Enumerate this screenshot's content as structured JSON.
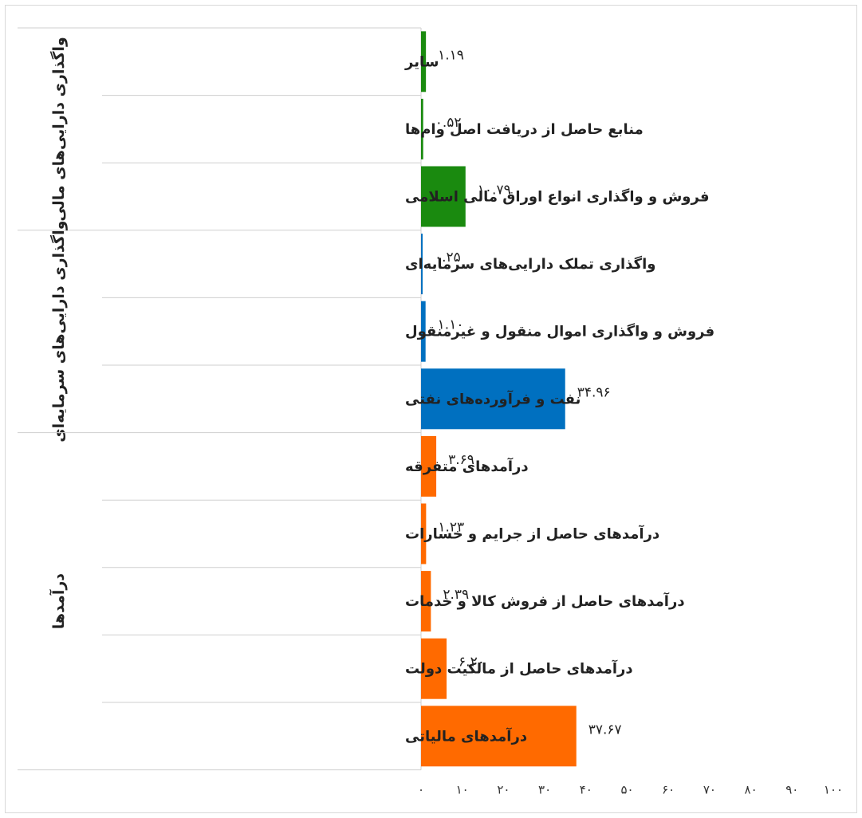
{
  "chart_data": {
    "type": "bar",
    "orientation": "horizontal",
    "direction": "rtl",
    "xlim": [
      0,
      100
    ],
    "x_ticks": [
      "۰",
      "۱۰",
      "۲۰",
      "۳۰",
      "۴۰",
      "۵۰",
      "۶۰",
      "۷۰",
      "۸۰",
      "۹۰",
      "۱۰۰"
    ],
    "groups": [
      {
        "name": "واگذاری دارایی‌های مالی",
        "color": "#1a8a0f",
        "items": [
          {
            "label": "سایر",
            "value": 1.19,
            "value_label": "۱.۱۹"
          },
          {
            "label": "منابع حاصل از دریافت اصل وام‌ها",
            "value": 0.52,
            "value_label": "۰.۵۲"
          },
          {
            "label": "فروش و واگذاری انواع اوراق مالی اسلامی",
            "value": 10.79,
            "value_label": "۱۰.۷۹"
          }
        ]
      },
      {
        "name": "واگذاری دارایی‌های سرمایه‌ای",
        "color": "#0070c0",
        "items": [
          {
            "label": "واگذاری تملک دارایی‌های سرمایه‌ای",
            "value": 0.25,
            "value_label": "۰.۲۵"
          },
          {
            "label": "فروش و واگذاری اموال منقول و غیرمنقول",
            "value": 1.1,
            "value_label": "۱.۱۰"
          },
          {
            "label": "نفت و فرآورده‌های نفتی",
            "value": 34.96,
            "value_label": "۳۴.۹۶"
          }
        ]
      },
      {
        "name": "درآمدها",
        "color": "#ff6a00",
        "items": [
          {
            "label": "درآمدهای متفرقه",
            "value": 3.69,
            "value_label": "۳.۶۹"
          },
          {
            "label": "درآمدهای حاصل از جرایم و خسارات",
            "value": 1.23,
            "value_label": "۱.۲۳"
          },
          {
            "label": "درآمدهای حاصل از فروش کالا و خدمات",
            "value": 2.39,
            "value_label": "۲.۳۹"
          },
          {
            "label": "درآمدهای حاصل از مالکیت دولت",
            "value": 6.2,
            "value_label": "۶.۲۰"
          },
          {
            "label": "درآمدهای مالیاتی",
            "value": 37.67,
            "value_label": "۳۷.۶۷"
          }
        ]
      }
    ]
  }
}
